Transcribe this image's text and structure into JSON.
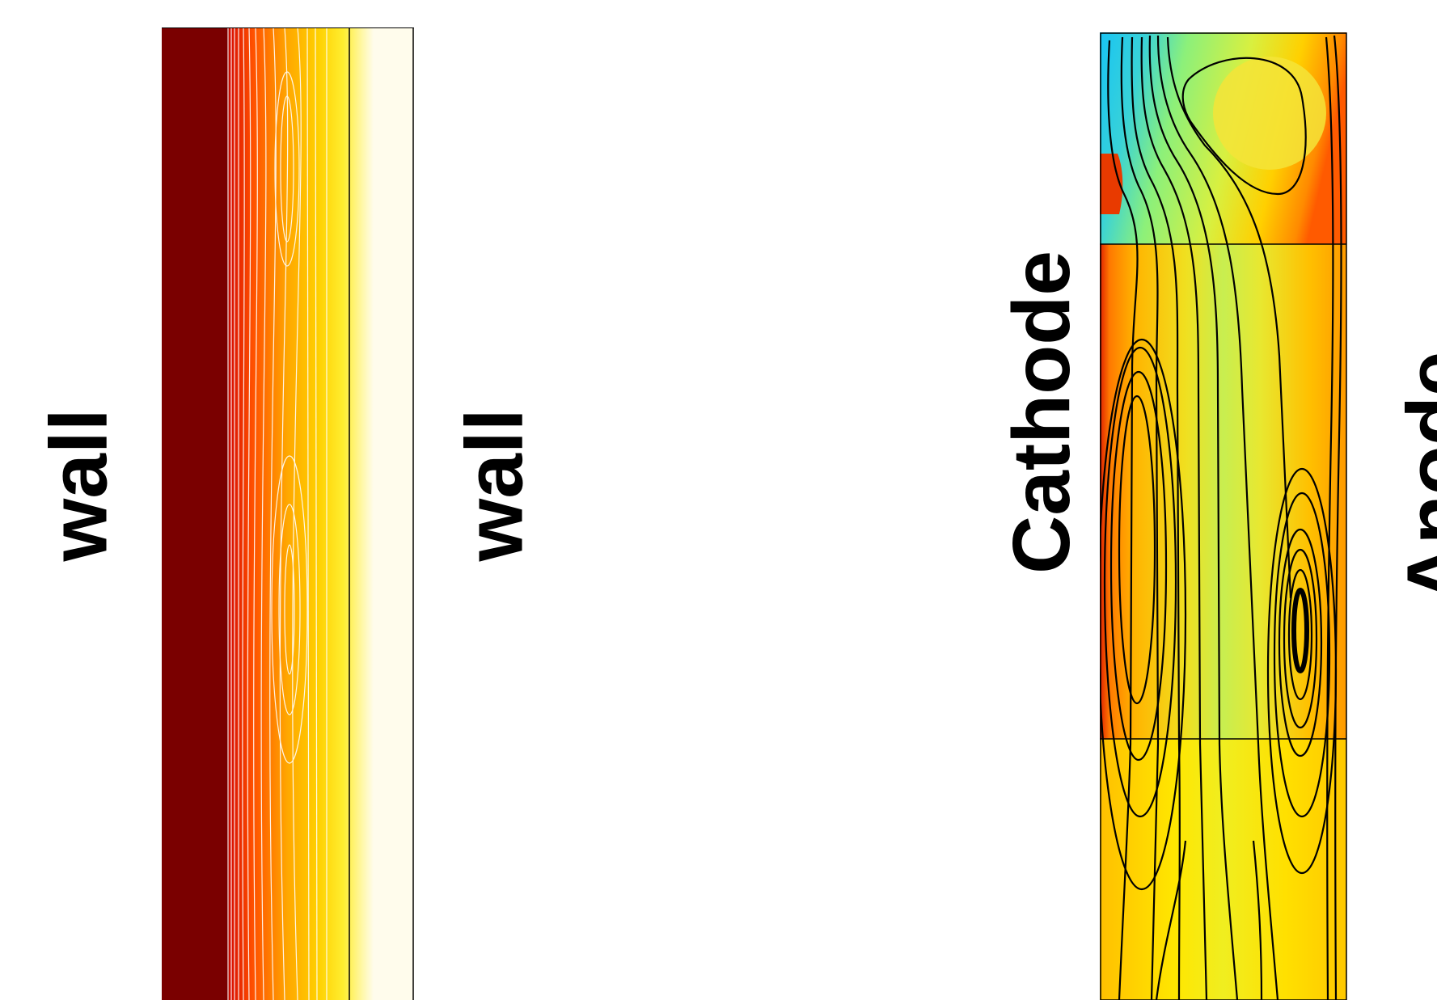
{
  "labels": {
    "wall_left": "wall",
    "wall_right": "wall",
    "cathode": "Cathode",
    "anode": "Anode"
  },
  "colors": {
    "wall_dark": "#7a0000",
    "hot_red": "#e82000",
    "orange": "#ff8a00",
    "yellow": "#ffe800",
    "pale": "#fffbea",
    "cyan": "#1ec8f0",
    "green": "#8ef078",
    "streamline": "#000000",
    "contour": "#ffffff"
  }
}
